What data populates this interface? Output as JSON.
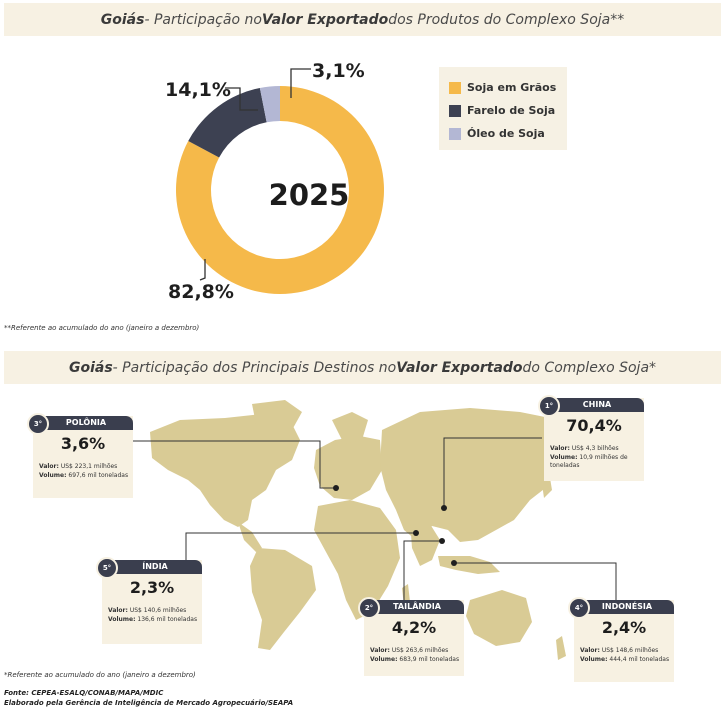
{
  "banner1": {
    "region": "Goiás",
    "t1": " - Participação no ",
    "bold": "Valor Exportado",
    "t2": " dos Produtos do Complexo Soja**"
  },
  "banner2": {
    "region": "Goiás",
    "t1": " - Participação dos Principais Destinos no ",
    "bold": "Valor Exportado",
    "t2": " do Complexo Soja*"
  },
  "chart_data": {
    "type": "pie",
    "center_label": "2025",
    "slices": [
      {
        "name": "Soja em Grãos",
        "value": 82.8,
        "label": "82,8%",
        "color": "#f5b94a"
      },
      {
        "name": "Farelo de Soja",
        "value": 14.1,
        "label": "14,1%",
        "color": "#3d4152"
      },
      {
        "name": "Óleo de Soja",
        "value": 3.1,
        "label": "3,1%",
        "color": "#b3b7d4"
      }
    ],
    "legend_position": "right"
  },
  "footnote1": "**Referente ao acumulado do ano (janeiro a dezembro)",
  "destinations": [
    {
      "rank": "1°",
      "country": "CHINA",
      "share": "70,4%",
      "value_label": "Valor:",
      "value": "US$ 4,3 bilhões",
      "volume_label": "Volume:",
      "volume": "10,9 milhões de toneladas"
    },
    {
      "rank": "2°",
      "country": "TAILÂNDIA",
      "share": "4,2%",
      "value_label": "Valor:",
      "value": "US$ 263,6 milhões",
      "volume_label": "Volume:",
      "volume": "683,9 mil toneladas"
    },
    {
      "rank": "3°",
      "country": "POLÔNIA",
      "share": "3,6%",
      "value_label": "Valor:",
      "value": "US$ 223,1 milhões",
      "volume_label": "Volume:",
      "volume": "697,6 mil toneladas"
    },
    {
      "rank": "4°",
      "country": "INDONÉSIA",
      "share": "2,4%",
      "value_label": "Valor:",
      "value": "US$ 148,6 milhões",
      "volume_label": "Volume:",
      "volume": "444,4 mil toneladas"
    },
    {
      "rank": "5°",
      "country": "ÍNDIA",
      "share": "2,3%",
      "value_label": "Valor:",
      "value": "US$ 140,6 milhões",
      "volume_label": "Volume:",
      "volume": "136,6 mil toneladas"
    }
  ],
  "footnote2": "*Referente ao acumulado do ano (janeiro a dezembro)",
  "source_line1": "Fonte: CEPEA-ESALQ/CONAB/MAPA/MDIC",
  "source_line2": "Elaborado pela Gerência de Inteligência de Mercado Agropecuário/SEAPA",
  "colors": {
    "map_land": "#d9cb95",
    "card_bg": "#f7f1e2",
    "header": "#3a3e4e",
    "banner_bg": "#f7f1e3"
  }
}
